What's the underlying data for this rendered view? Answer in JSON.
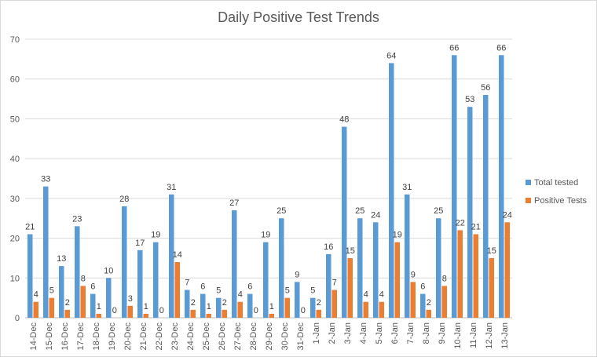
{
  "chart_data": {
    "type": "bar",
    "title": "Daily Positive Test Trends",
    "categories": [
      "14-Dec",
      "15-Dec",
      "16-Dec",
      "17-Dec",
      "18-Dec",
      "19-Dec",
      "20-Dec",
      "21-Dec",
      "22-Dec",
      "23-Dec",
      "24-Dec",
      "25-Dec",
      "26-Dec",
      "27-Dec",
      "28-Dec",
      "29-Dec",
      "30-Dec",
      "31-Dec",
      "1-Jan",
      "2-Jan",
      "3-Jan",
      "4-Jan",
      "5-Jan",
      "6-Jan",
      "7-Jan",
      "8-Jan",
      "9-Jan",
      "10-Jan",
      "11-Jan",
      "12-Jan",
      "13-Jan"
    ],
    "series": [
      {
        "name": "Total tested",
        "color": "#5b9bd5",
        "values": [
          21,
          33,
          13,
          23,
          6,
          10,
          28,
          17,
          19,
          31,
          7,
          6,
          5,
          27,
          6,
          19,
          25,
          9,
          5,
          16,
          48,
          25,
          24,
          64,
          31,
          6,
          25,
          66,
          53,
          56,
          66
        ]
      },
      {
        "name": "Positive Tests",
        "color": "#ed7d31",
        "values": [
          4,
          5,
          2,
          8,
          1,
          0,
          3,
          1,
          0,
          14,
          2,
          1,
          2,
          4,
          0,
          1,
          5,
          0,
          2,
          7,
          15,
          4,
          4,
          19,
          9,
          2,
          8,
          22,
          21,
          15,
          24
        ]
      }
    ],
    "yticks": [
      0,
      10,
      20,
      30,
      40,
      50,
      60,
      70
    ],
    "ylim": [
      0,
      70
    ],
    "grid": true,
    "legend_position": "right",
    "data_labels": true
  }
}
